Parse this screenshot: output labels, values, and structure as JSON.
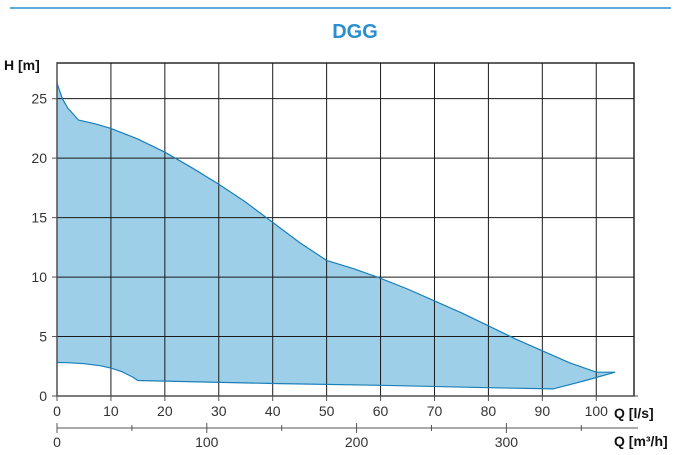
{
  "chart_data": {
    "type": "area",
    "title": "DGG",
    "ylabel": "H [m]",
    "xlabel": "Q [l/s]",
    "x2label": "Q [m³/h]",
    "xlim": [
      0,
      107
    ],
    "ylim": [
      0,
      28
    ],
    "xticks": [
      0,
      10,
      20,
      30,
      40,
      50,
      60,
      70,
      80,
      90,
      100
    ],
    "yticks": [
      0,
      5,
      10,
      15,
      20,
      25
    ],
    "x2lim": [
      0,
      385.2
    ],
    "x2ticks": [
      0,
      100,
      200,
      300
    ],
    "x2minor": [
      50,
      150,
      250,
      350
    ],
    "grid": true,
    "colors": {
      "fill": "#9ecfe8",
      "line": "#1a7fb8",
      "accent": "#2a8fcf"
    },
    "upper_curve": {
      "x": [
        0,
        1,
        2,
        4,
        7,
        10,
        15,
        20,
        25,
        30,
        35,
        40,
        45,
        50,
        55,
        60,
        65,
        70,
        75,
        80,
        85,
        90,
        95,
        100,
        103.5
      ],
      "y": [
        26.3,
        25.0,
        24.2,
        23.2,
        22.9,
        22.5,
        21.6,
        20.5,
        19.2,
        17.8,
        16.3,
        14.6,
        12.9,
        11.4,
        10.7,
        9.9,
        9.0,
        8.0,
        7.0,
        5.9,
        4.8,
        3.8,
        2.8,
        2.0,
        2.0
      ]
    },
    "lower_curve": {
      "x": [
        103.5,
        98,
        92,
        80,
        60,
        40,
        20,
        15,
        14,
        12,
        10,
        8,
        5,
        2,
        0
      ],
      "y": [
        2.0,
        1.3,
        0.6,
        0.7,
        0.9,
        1.05,
        1.25,
        1.3,
        1.6,
        2.05,
        2.35,
        2.55,
        2.72,
        2.8,
        2.82
      ]
    }
  }
}
